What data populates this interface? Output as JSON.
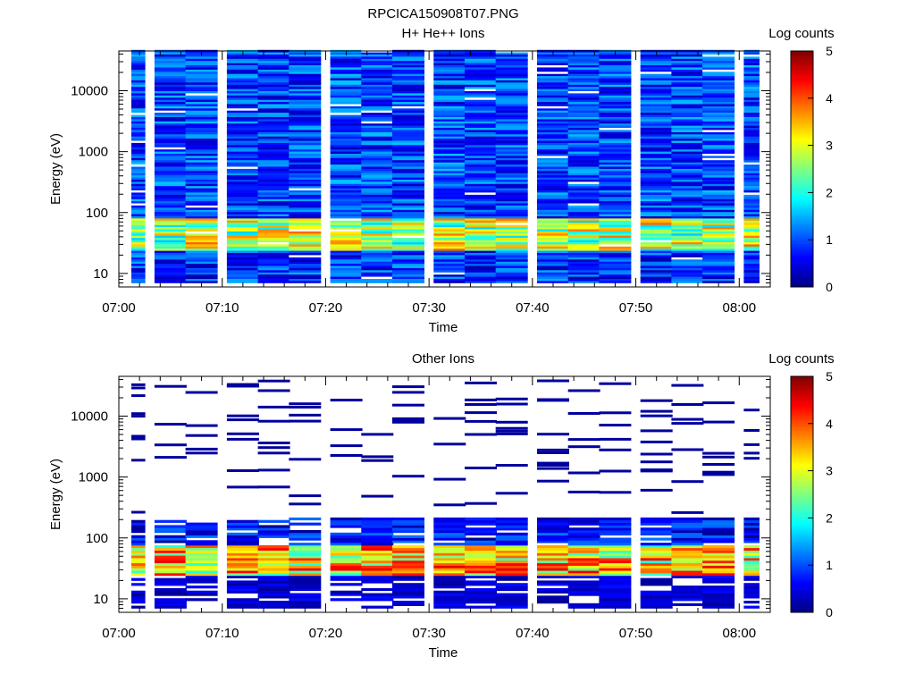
{
  "figure": {
    "title": "RPCICA150908T07.PNG"
  },
  "chart_data": [
    {
      "type": "heatmap",
      "title": "H+ He++ Ions",
      "xlabel": "Time",
      "ylabel": "Energy (eV)",
      "x_ticks": [
        "07:00",
        "07:10",
        "07:20",
        "07:30",
        "07:40",
        "07:50",
        "08:00"
      ],
      "y_ticks": [
        "10",
        "100",
        "1000",
        "10000"
      ],
      "y_scale": "log",
      "ylim": [
        6,
        45000
      ],
      "xlim": [
        "07:00",
        "08:03"
      ],
      "colorbar": {
        "label": "Log counts",
        "range": [
          0,
          5
        ],
        "ticks": [
          "0",
          "1",
          "2",
          "3",
          "4",
          "5"
        ],
        "colormap": "jet"
      },
      "time_bins": [
        "07:01",
        "07:05",
        "07:08",
        "07:12",
        "07:15",
        "07:18",
        "07:22",
        "07:25",
        "07:28",
        "07:32",
        "07:35",
        "07:38",
        "07:42",
        "07:45",
        "07:48",
        "07:52",
        "07:55",
        "07:58",
        "08:02"
      ],
      "energy_bins_eV": [
        8,
        12,
        18,
        26,
        38,
        55,
        80,
        120,
        180,
        270,
        400,
        600,
        900,
        1350,
        2000,
        3000,
        4500,
        6700,
        10000,
        15000,
        22000,
        33000
      ],
      "summary": "Intense emission (3-4) between about 25 and 80 eV; moderate 1-1.5 levels at higher energies; weak below 20 eV."
    },
    {
      "type": "heatmap",
      "title": "Other Ions",
      "xlabel": "Time",
      "ylabel": "Energy (eV)",
      "x_ticks": [
        "07:00",
        "07:10",
        "07:20",
        "07:30",
        "07:40",
        "07:50",
        "08:00"
      ],
      "y_ticks": [
        "10",
        "100",
        "1000",
        "10000"
      ],
      "y_scale": "log",
      "ylim": [
        6,
        45000
      ],
      "xlim": [
        "07:00",
        "08:03"
      ],
      "colorbar": {
        "label": "Log counts",
        "range": [
          0,
          5
        ],
        "ticks": [
          "0",
          "1",
          "2",
          "3",
          "4",
          "5"
        ],
        "colormap": "jet"
      },
      "time_bins": [
        "07:01",
        "07:05",
        "07:08",
        "07:12",
        "07:15",
        "07:18",
        "07:22",
        "07:25",
        "07:28",
        "07:32",
        "07:35",
        "07:38",
        "07:42",
        "07:45",
        "07:48",
        "07:52",
        "07:55",
        "07:58",
        "08:02"
      ],
      "energy_bins_eV": [
        8,
        12,
        18,
        26,
        38,
        55,
        80,
        120,
        180
      ],
      "summary": "Strong band (up to ~4.5) around 30-70 eV; sparse low-count lines up to ~40000 eV."
    }
  ]
}
